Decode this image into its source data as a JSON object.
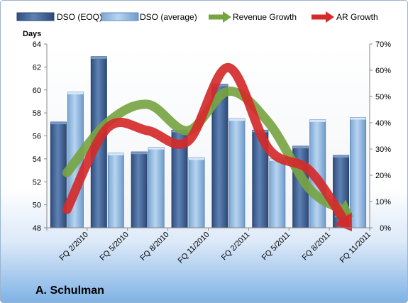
{
  "footer_title": "A. Schulman",
  "chart_data": {
    "type": "bar",
    "categories": [
      "FQ 2/2010",
      "FQ 5/2010",
      "FQ 8/2010",
      "FQ 11/2010",
      "FQ 2/2011",
      "FQ 5/2011",
      "FQ 8/2011",
      "FQ 11/2011"
    ],
    "y_left_label": "Days",
    "y_left_range": [
      48,
      64
    ],
    "y_left_ticks": [
      "48",
      "50",
      "52",
      "54",
      "56",
      "58",
      "60",
      "62",
      "64"
    ],
    "y_right_range": [
      0,
      70
    ],
    "y_right_ticks": [
      "0%",
      "10%",
      "20%",
      "30%",
      "40%",
      "50%",
      "60%",
      "70%"
    ],
    "bar_series": [
      {
        "name": "DSO (EOQ)",
        "color": "#4a6a9c",
        "values": [
          57.2,
          62.9,
          54.6,
          56.5,
          60.5,
          56.5,
          55.1,
          54.3
        ]
      },
      {
        "name": "DSO (average)",
        "color": "#9cc0e4",
        "values": [
          59.8,
          54.5,
          55.0,
          54.1,
          57.5,
          54.0,
          57.4,
          57.6
        ]
      }
    ],
    "line_series": [
      {
        "name": "Revenue Growth",
        "color": "#77a443",
        "values": [
          21,
          40,
          47,
          37,
          52,
          40,
          15,
          5
        ]
      },
      {
        "name": "AR Growth",
        "color": "#d42a2a",
        "values": [
          7,
          38,
          37,
          33,
          61,
          30,
          22,
          0
        ]
      }
    ],
    "grid": false,
    "legend_position": "top"
  }
}
